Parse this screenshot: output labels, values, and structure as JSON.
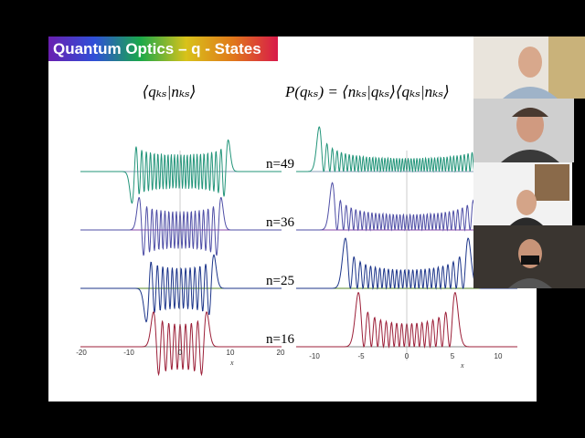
{
  "slide": {
    "title": "Quantum Optics – q - States",
    "formula_left": "⟨qₖₛ|nₖₛ⟩",
    "formula_right": "P(qₖₛ) = ⟨nₖₛ|qₖₛ⟩⟨qₖₛ|nₖₛ⟩",
    "rows": [
      {
        "label": "n=49"
      },
      {
        "label": "n=36"
      },
      {
        "label": "n=25"
      },
      {
        "label": "n=16"
      }
    ],
    "left_axis": {
      "ticks": [
        "-20",
        "-10",
        "0",
        "10",
        "20"
      ],
      "label": "x"
    },
    "right_axis": {
      "ticks": [
        "-10",
        "-5",
        "0",
        "5",
        "10"
      ],
      "label": "x"
    }
  }
}
